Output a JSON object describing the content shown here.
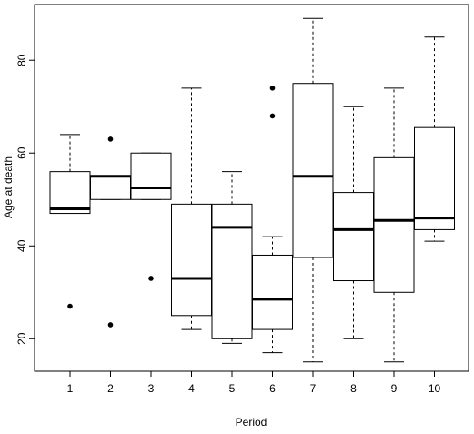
{
  "chart_data": {
    "type": "boxplot",
    "title": "",
    "xlabel": "Period",
    "ylabel": "Age at death",
    "categories": [
      "1",
      "2",
      "3",
      "4",
      "5",
      "6",
      "7",
      "8",
      "9",
      "10"
    ],
    "ylim": [
      13,
      92
    ],
    "yticks": [
      20,
      40,
      60,
      80
    ],
    "ytick_labels": [
      "20",
      "40",
      "60",
      "80"
    ],
    "grid": false,
    "boxes": [
      {
        "category": "1",
        "whisker_low": 47,
        "q1": 47,
        "median": 48,
        "q3": 56,
        "whisker_high": 64,
        "outliers": [
          27
        ]
      },
      {
        "category": "2",
        "whisker_low": 50,
        "q1": 50,
        "median": 55,
        "q3": 55,
        "whisker_high": 55,
        "outliers": [
          63,
          23
        ]
      },
      {
        "category": "3",
        "whisker_low": 50,
        "q1": 50,
        "median": 52.5,
        "q3": 60,
        "whisker_high": 60,
        "outliers": [
          33
        ]
      },
      {
        "category": "4",
        "whisker_low": 22,
        "q1": 25,
        "median": 33,
        "q3": 49,
        "whisker_high": 74,
        "outliers": []
      },
      {
        "category": "5",
        "whisker_low": 19,
        "q1": 20,
        "median": 44,
        "q3": 49,
        "whisker_high": 56,
        "outliers": []
      },
      {
        "category": "6",
        "whisker_low": 17,
        "q1": 22,
        "median": 28.5,
        "q3": 38,
        "whisker_high": 42,
        "outliers": [
          74,
          68
        ]
      },
      {
        "category": "7",
        "whisker_low": 15,
        "q1": 37.5,
        "median": 55,
        "q3": 75,
        "whisker_high": 89,
        "outliers": []
      },
      {
        "category": "8",
        "whisker_low": 20,
        "q1": 32.5,
        "median": 43.5,
        "q3": 51.5,
        "whisker_high": 70,
        "outliers": []
      },
      {
        "category": "9",
        "whisker_low": 15,
        "q1": 30,
        "median": 45.5,
        "q3": 59,
        "whisker_high": 74,
        "outliers": []
      },
      {
        "category": "10",
        "whisker_low": 41,
        "q1": 43.5,
        "median": 46,
        "q3": 65.5,
        "whisker_high": 85,
        "outliers": []
      }
    ]
  }
}
